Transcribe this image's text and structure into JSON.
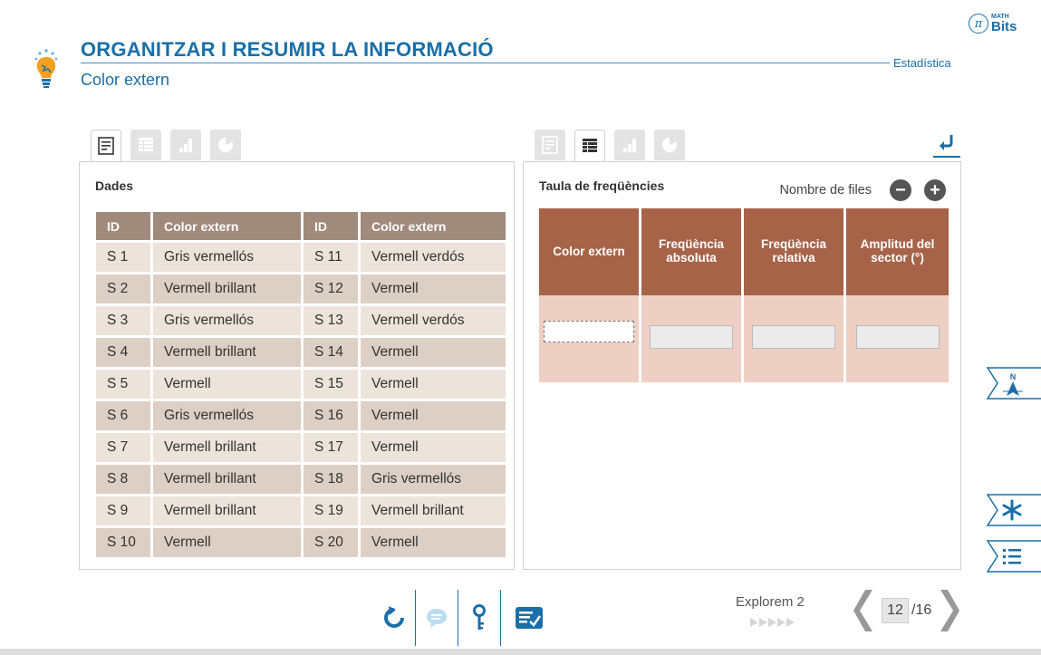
{
  "header": {
    "title": "ORGANITZAR I RESUMIR LA INFORMACIÓ",
    "subtitle": "Color extern",
    "section": "Estadística",
    "brand_small": "MATH",
    "brand_big": "Bits"
  },
  "left_panel": {
    "label": "Dades",
    "columns": [
      "ID",
      "Color extern",
      "ID",
      "Color extern"
    ],
    "rows": [
      [
        "S 1",
        "Gris vermellós",
        "S 11",
        "Vermell verdós"
      ],
      [
        "S 2",
        "Vermell brillant",
        "S 12",
        "Vermell"
      ],
      [
        "S 3",
        "Gris vermellós",
        "S 13",
        "Vermell verdós"
      ],
      [
        "S 4",
        "Vermell brillant",
        "S 14",
        "Vermell"
      ],
      [
        "S 5",
        "Vermell",
        "S 15",
        "Vermell"
      ],
      [
        "S 6",
        "Gris vermellós",
        "S 16",
        "Vermell"
      ],
      [
        "S 7",
        "Vermell brillant",
        "S 17",
        "Vermell"
      ],
      [
        "S 8",
        "Vermell brillant",
        "S 18",
        "Gris vermellós"
      ],
      [
        "S 9",
        "Vermell brillant",
        "S 19",
        "Vermell brillant"
      ],
      [
        "S 10",
        "Vermell",
        "S 20",
        "Vermell"
      ]
    ]
  },
  "right_panel": {
    "label": "Taula de freqüències",
    "rows_label": "Nombre de files",
    "columns": [
      "Color extern",
      "Freqüència absoluta",
      "Freqüència relativa",
      "Amplitud del sector (°)"
    ]
  },
  "footer": {
    "activity": "Explorem 2",
    "page_current": "12",
    "page_total": "/16"
  },
  "colors": {
    "accent": "#1a6fa8",
    "data_header": "#a08a7c",
    "freq_header": "#a66348",
    "freq_cell": "#eecfc3"
  }
}
